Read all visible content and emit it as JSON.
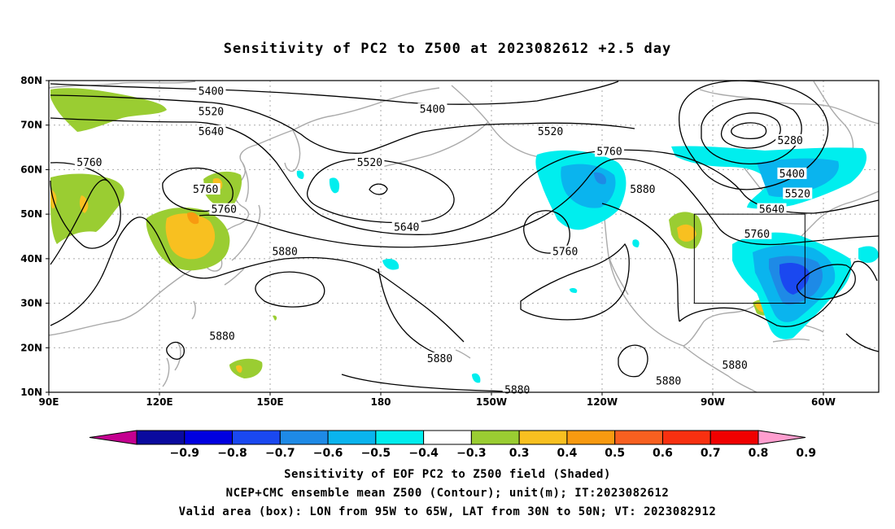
{
  "title": "Sensitivity of PC2 to Z500 at 2023082612 +2.5 day",
  "map": {
    "lon_range": [
      90,
      315
    ],
    "lat_range": [
      10,
      80
    ],
    "lat_ticks": [
      {
        "lat": 80,
        "label": "80N"
      },
      {
        "lat": 70,
        "label": "70N"
      },
      {
        "lat": 60,
        "label": "60N"
      },
      {
        "lat": 50,
        "label": "50N"
      },
      {
        "lat": 40,
        "label": "40N"
      },
      {
        "lat": 30,
        "label": "30N"
      },
      {
        "lat": 20,
        "label": "20N"
      },
      {
        "lat": 10,
        "label": "10N"
      }
    ],
    "lon_ticks": [
      {
        "lon": 90,
        "label": "90E"
      },
      {
        "lon": 120,
        "label": "120E"
      },
      {
        "lon": 150,
        "label": "150E"
      },
      {
        "lon": 180,
        "label": "180"
      },
      {
        "lon": 210,
        "label": "150W"
      },
      {
        "lon": 240,
        "label": "120W"
      },
      {
        "lon": 270,
        "label": "90W"
      },
      {
        "lon": 300,
        "label": "60W"
      }
    ],
    "valid_box": {
      "lon_min": 265,
      "lon_max": 295,
      "lat_min": 30,
      "lat_max": 50
    },
    "contour_labels": [
      {
        "text": "5400",
        "lon": 134,
        "lat": 77.5
      },
      {
        "text": "5520",
        "lon": 134,
        "lat": 73
      },
      {
        "text": "5640",
        "lon": 134,
        "lat": 68.5
      },
      {
        "text": "5400",
        "lon": 194,
        "lat": 73.5
      },
      {
        "text": "5520",
        "lon": 226,
        "lat": 68.5
      },
      {
        "text": "5760",
        "lon": 101,
        "lat": 61.5
      },
      {
        "text": "5520",
        "lon": 177,
        "lat": 61.5
      },
      {
        "text": "5760",
        "lon": 132.5,
        "lat": 55.5
      },
      {
        "text": "5760",
        "lon": 137.5,
        "lat": 51
      },
      {
        "text": "5640",
        "lon": 187,
        "lat": 47
      },
      {
        "text": "5760",
        "lon": 242,
        "lat": 64
      },
      {
        "text": "5880",
        "lon": 154,
        "lat": 41.5
      },
      {
        "text": "5760",
        "lon": 230,
        "lat": 41.5
      },
      {
        "text": "5880",
        "lon": 251,
        "lat": 55.5
      },
      {
        "text": "5280",
        "lon": 291,
        "lat": 66.5
      },
      {
        "text": "5400",
        "lon": 291.5,
        "lat": 59
      },
      {
        "text": "5520",
        "lon": 293,
        "lat": 54.5
      },
      {
        "text": "5640",
        "lon": 286,
        "lat": 51
      },
      {
        "text": "5760",
        "lon": 282,
        "lat": 45.5
      },
      {
        "text": "5880",
        "lon": 137,
        "lat": 22.5
      },
      {
        "text": "5880",
        "lon": 196,
        "lat": 17.5
      },
      {
        "text": "5880",
        "lon": 217,
        "lat": 10.5
      },
      {
        "text": "5880",
        "lon": 258,
        "lat": 12.5
      },
      {
        "text": "5880",
        "lon": 276,
        "lat": 16
      }
    ]
  },
  "colorbar": {
    "colors": [
      "#c40090",
      "#0a0a9e",
      "#0000e0",
      "#1a48f0",
      "#1e8ae6",
      "#0ab4ee",
      "#00eeee",
      "#ffffff",
      "#9acd32",
      "#f8c020",
      "#f89a10",
      "#f86020",
      "#f83010",
      "#f00000",
      "#ff9ecf"
    ],
    "labels": [
      "-0.9",
      "-0.8",
      "-0.7",
      "-0.6",
      "-0.5",
      "-0.4",
      "-0.3",
      "0.3",
      "0.4",
      "0.5",
      "0.6",
      "0.7",
      "0.8",
      "0.9"
    ]
  },
  "captions": [
    "Sensitivity of EOF PC2 to Z500 field (Shaded)",
    "NCEP+CMC ensemble mean Z500 (Contour); unit(m); IT:2023082612",
    "Valid area (box): LON from 95W to 65W, LAT from 30N to 50N; VT: 2023082912"
  ]
}
